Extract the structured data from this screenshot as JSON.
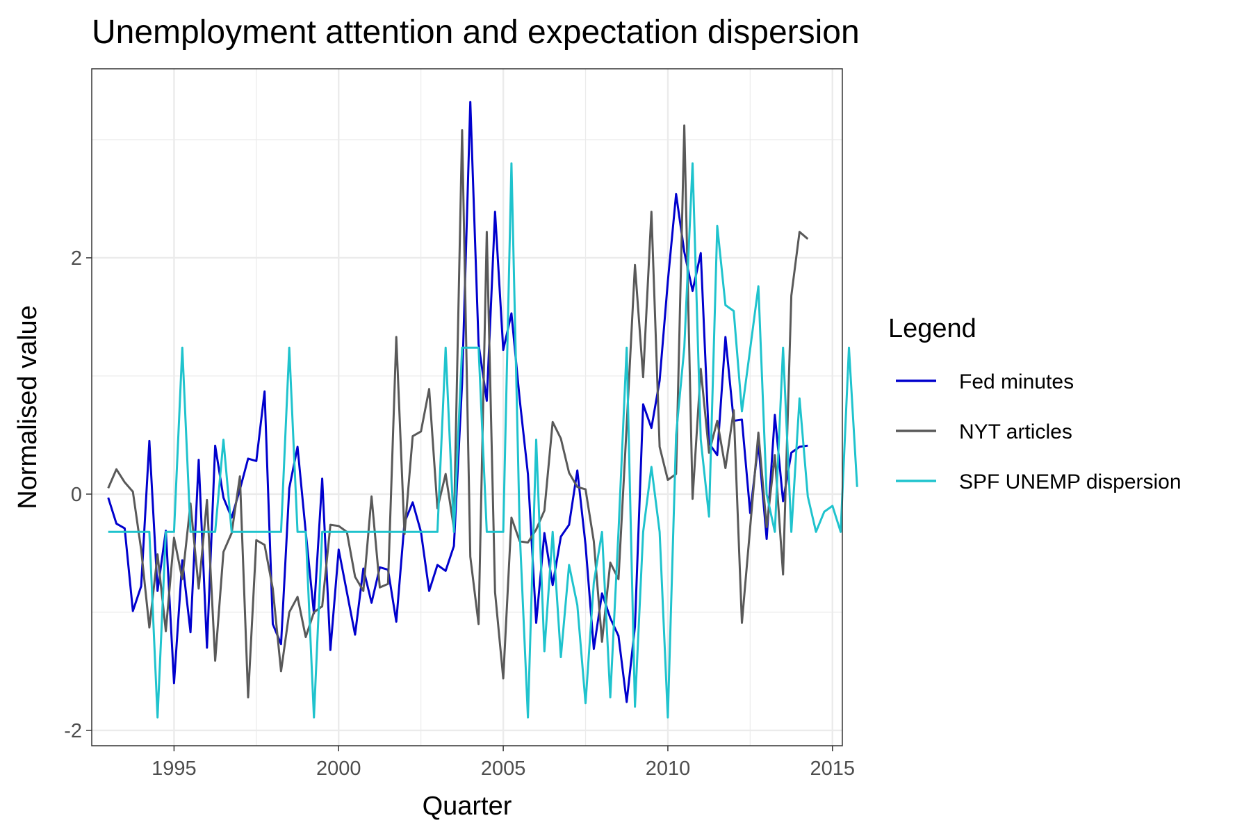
{
  "chart_data": {
    "type": "line",
    "title": "Unemployment attention and expectation dispersion",
    "xlabel": "Quarter",
    "ylabel": "Normalised value",
    "xlim": [
      1992.5,
      2015.3
    ],
    "ylim": [
      -2.13,
      3.6
    ],
    "x_ticks": [
      1995,
      2000,
      2005,
      2010,
      2015
    ],
    "x_tick_labels": [
      "1995",
      "2000",
      "2005",
      "2010",
      "2015"
    ],
    "y_ticks": [
      -2,
      0,
      2
    ],
    "y_tick_labels": [
      "-2",
      "0",
      "2"
    ],
    "grid": true,
    "legend": {
      "title": "Legend",
      "position": "right"
    },
    "x_start": 1993.0,
    "x_step": 0.25,
    "series": [
      {
        "name": "Fed minutes",
        "color": "#0000CD",
        "values": [
          -0.03,
          -0.25,
          -0.29,
          -0.99,
          -0.78,
          0.45,
          -0.82,
          -0.31,
          -1.6,
          -0.56,
          -1.17,
          0.29,
          -1.3,
          0.41,
          -0.03,
          -0.2,
          0.04,
          0.3,
          0.28,
          0.87,
          -1.1,
          -1.27,
          0.05,
          0.4,
          -0.32,
          -1.01,
          0.13,
          -1.32,
          -0.47,
          -0.83,
          -1.19,
          -0.63,
          -0.92,
          -0.62,
          -0.64,
          -1.08,
          -0.24,
          -0.07,
          -0.32,
          -0.82,
          -0.6,
          -0.65,
          -0.44,
          0.94,
          3.32,
          1.27,
          0.79,
          2.39,
          1.22,
          1.53,
          0.8,
          0.17,
          -1.09,
          -0.33,
          -0.77,
          -0.36,
          -0.26,
          0.2,
          -0.43,
          -1.31,
          -0.84,
          -1.05,
          -1.2,
          -1.76,
          -1.12,
          0.76,
          0.56,
          0.96,
          1.8,
          2.54,
          2.05,
          1.72,
          2.04,
          0.43,
          0.33,
          1.33,
          0.62,
          0.63,
          -0.16,
          0.43,
          -0.38,
          0.67,
          -0.06,
          0.35,
          0.4,
          0.41
        ]
      },
      {
        "name": "NYT articles",
        "color": "#595959",
        "values": [
          0.05,
          0.21,
          0.1,
          0.02,
          -0.47,
          -1.13,
          -0.51,
          -1.16,
          -0.37,
          -0.72,
          -0.08,
          -0.8,
          -0.05,
          -1.41,
          -0.49,
          -0.33,
          0.15,
          -1.72,
          -0.39,
          -0.43,
          -0.8,
          -1.5,
          -1.0,
          -0.87,
          -1.21,
          -1.0,
          -0.95,
          -0.26,
          -0.27,
          -0.32,
          -0.7,
          -0.82,
          -0.02,
          -0.79,
          -0.76,
          1.33,
          -0.34,
          0.49,
          0.53,
          0.89,
          -0.12,
          0.17,
          -0.29,
          3.08,
          -0.53,
          -1.1,
          2.22,
          -0.83,
          -1.56,
          -0.2,
          -0.4,
          -0.41,
          -0.3,
          -0.14,
          0.61,
          0.47,
          0.18,
          0.06,
          0.04,
          -0.4,
          -1.25,
          -0.58,
          -0.72,
          0.58,
          1.94,
          0.99,
          2.39,
          0.4,
          0.12,
          0.17,
          3.12,
          -0.04,
          1.06,
          0.35,
          0.62,
          0.22,
          0.71,
          -1.09,
          -0.28,
          0.52,
          -0.28,
          0.33,
          -0.68,
          1.68,
          2.22,
          2.16
        ]
      },
      {
        "name": "SPF UNEMP dispersion",
        "color": "#1FC3CD",
        "values": [
          -0.32,
          -0.32,
          -0.32,
          -0.32,
          -0.32,
          -0.32,
          -1.89,
          -0.32,
          -0.32,
          1.24,
          -0.32,
          -0.32,
          -0.32,
          -0.32,
          0.46,
          -0.32,
          -0.32,
          -0.32,
          -0.32,
          -0.32,
          -0.32,
          -0.32,
          1.24,
          -0.32,
          -0.32,
          -1.89,
          -0.32,
          -0.32,
          -0.32,
          -0.32,
          -0.32,
          -0.32,
          -0.32,
          -0.32,
          -0.32,
          -0.32,
          -0.32,
          -0.32,
          -0.32,
          -0.32,
          -0.32,
          1.24,
          -0.32,
          1.24,
          1.24,
          1.24,
          -0.32,
          -0.32,
          -0.32,
          2.8,
          -0.32,
          -1.89,
          0.46,
          -1.33,
          -0.32,
          -1.38,
          -0.6,
          -0.94,
          -1.77,
          -0.75,
          -0.32,
          -1.72,
          -0.32,
          1.24,
          -1.8,
          -0.32,
          0.23,
          -0.32,
          -1.89,
          0.5,
          1.24,
          2.8,
          0.46,
          -0.19,
          2.27,
          1.6,
          1.55,
          0.7,
          1.23,
          1.76,
          0.0,
          -0.32,
          1.24,
          -0.32,
          0.81,
          -0.02,
          -0.32,
          -0.15,
          -0.1,
          -0.32,
          1.24,
          0.06
        ]
      }
    ]
  }
}
